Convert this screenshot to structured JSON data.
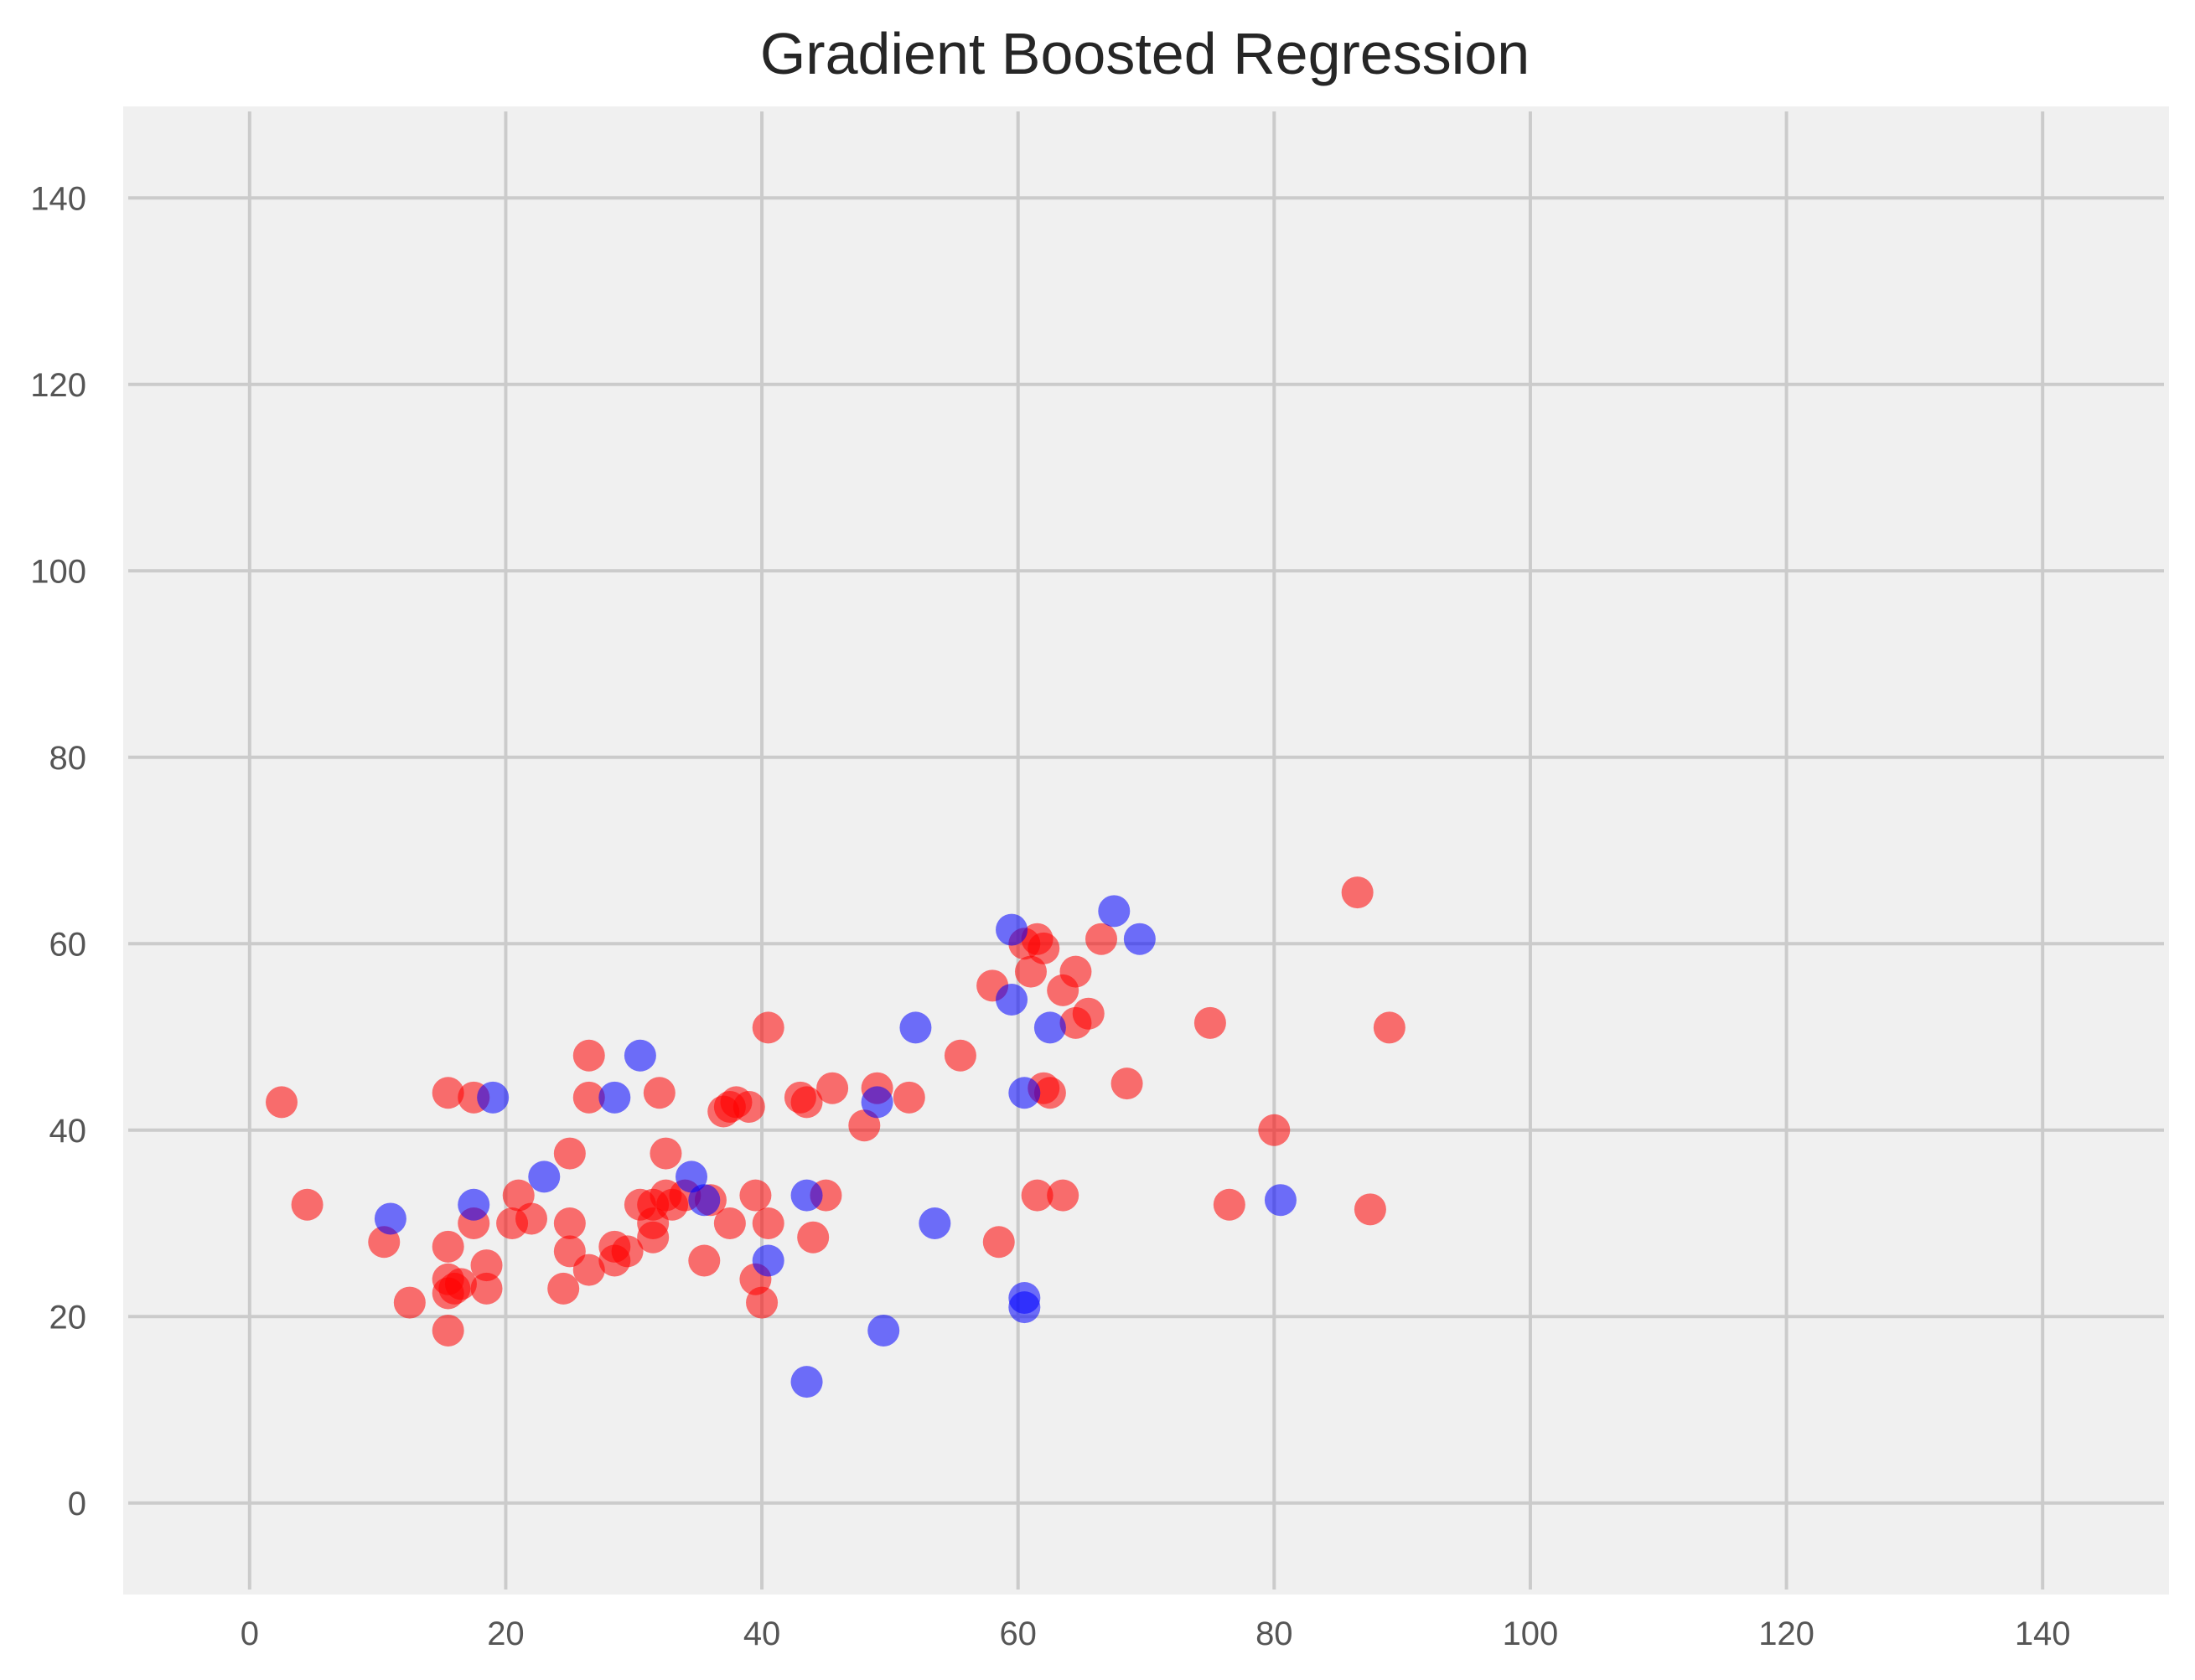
{
  "chart_data": {
    "type": "scatter",
    "title": "Gradient Boosted Regression",
    "xlabel": "",
    "ylabel": "",
    "xlim": [
      -10,
      150
    ],
    "ylim": [
      -10,
      150
    ],
    "xticks": [
      0,
      20,
      40,
      60,
      80,
      100,
      120,
      140
    ],
    "yticks": [
      0,
      20,
      40,
      60,
      80,
      100,
      120,
      140
    ],
    "grid": true,
    "background": "#f0f0f0",
    "series": [
      {
        "color": "#ff0000",
        "points": [
          [
            2.5,
            43
          ],
          [
            4.5,
            32
          ],
          [
            10.5,
            28
          ],
          [
            12.5,
            21.5
          ],
          [
            15.5,
            27.5
          ],
          [
            15.5,
            24
          ],
          [
            15.5,
            22.5
          ],
          [
            15.5,
            18.5
          ],
          [
            16,
            23
          ],
          [
            16.5,
            23.5
          ],
          [
            15.5,
            44
          ],
          [
            17.5,
            43.5
          ],
          [
            17.5,
            30
          ],
          [
            18.5,
            25.5
          ],
          [
            18.5,
            23
          ],
          [
            21,
            33
          ],
          [
            20.5,
            30
          ],
          [
            22,
            30.5
          ],
          [
            25,
            37.5
          ],
          [
            24.5,
            23
          ],
          [
            25,
            27
          ],
          [
            25,
            30
          ],
          [
            26.5,
            25
          ],
          [
            26.5,
            43.5
          ],
          [
            26.5,
            48
          ],
          [
            28.5,
            27.5
          ],
          [
            28.5,
            26
          ],
          [
            29.5,
            27
          ],
          [
            30.5,
            32
          ],
          [
            31.5,
            32
          ],
          [
            31.5,
            30
          ],
          [
            31.5,
            28.5
          ],
          [
            32,
            44
          ],
          [
            32.5,
            37.5
          ],
          [
            32.5,
            33
          ],
          [
            33,
            32
          ],
          [
            34,
            33
          ],
          [
            35.5,
            26
          ],
          [
            36,
            32.5
          ],
          [
            37.5,
            30
          ],
          [
            37,
            42
          ],
          [
            37.5,
            42.5
          ],
          [
            38,
            43
          ],
          [
            39,
            42.5
          ],
          [
            39.5,
            33
          ],
          [
            39.5,
            24
          ],
          [
            40,
            21.5
          ],
          [
            40.5,
            51
          ],
          [
            40.5,
            30
          ],
          [
            43,
            43.5
          ],
          [
            43.5,
            43
          ],
          [
            44,
            28.5
          ],
          [
            45,
            33
          ],
          [
            45.5,
            44.5
          ],
          [
            48,
            40.5
          ],
          [
            49,
            44.5
          ],
          [
            51.5,
            43.5
          ],
          [
            55.5,
            48
          ],
          [
            58,
            55.5
          ],
          [
            58.5,
            28
          ],
          [
            60.5,
            60
          ],
          [
            61,
            57
          ],
          [
            61.5,
            60.5
          ],
          [
            62,
            59.5
          ],
          [
            61.5,
            33
          ],
          [
            62.5,
            44
          ],
          [
            62,
            44.5
          ],
          [
            63.5,
            33
          ],
          [
            63.5,
            55
          ],
          [
            64.5,
            57
          ],
          [
            64.5,
            51.5
          ],
          [
            65.5,
            52.5
          ],
          [
            66.5,
            60.5
          ],
          [
            68.5,
            45
          ],
          [
            75,
            51.5
          ],
          [
            76.5,
            32
          ],
          [
            80,
            40
          ],
          [
            86.5,
            65.5
          ],
          [
            87.5,
            31.5
          ],
          [
            89,
            51
          ]
        ]
      },
      {
        "color": "#0000ff",
        "points": [
          [
            11,
            30.5
          ],
          [
            17.5,
            32
          ],
          [
            19,
            43.5
          ],
          [
            23,
            35
          ],
          [
            28.5,
            43.5
          ],
          [
            30.5,
            48
          ],
          [
            34.5,
            35
          ],
          [
            35.5,
            32.5
          ],
          [
            40.5,
            26
          ],
          [
            43.5,
            33
          ],
          [
            43.5,
            13
          ],
          [
            49,
            43
          ],
          [
            49.5,
            18.5
          ],
          [
            52,
            51
          ],
          [
            53.5,
            30
          ],
          [
            59.5,
            61.5
          ],
          [
            59.5,
            54
          ],
          [
            60.5,
            44
          ],
          [
            60.5,
            22
          ],
          [
            60.5,
            21
          ],
          [
            62.5,
            51
          ],
          [
            67.5,
            63.5
          ],
          [
            69.5,
            60.5
          ],
          [
            80.5,
            32.5
          ]
        ]
      }
    ]
  }
}
